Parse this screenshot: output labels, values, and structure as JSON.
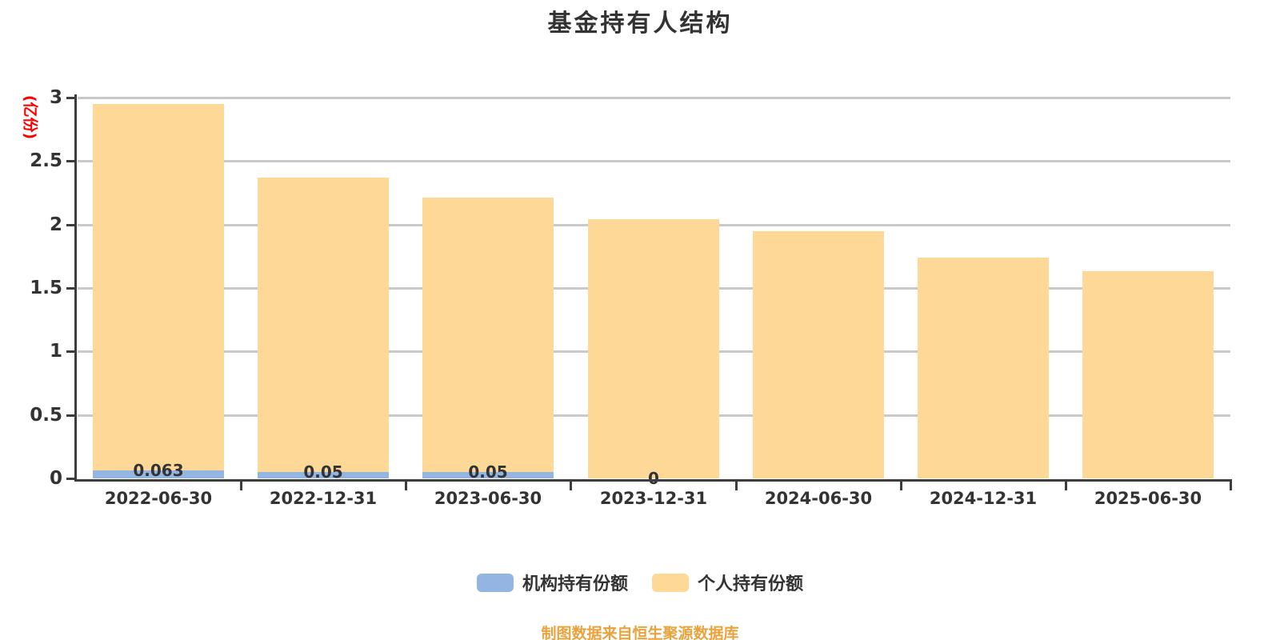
{
  "page": {
    "background": "#ffffff"
  },
  "chart": {
    "title": "基金持有人结构",
    "y_axis": {
      "name": "(亿份)",
      "name_color": "#ff0000",
      "tick_labels": [
        "0",
        "0.5",
        "1",
        "1.5",
        "2",
        "2.5",
        "3"
      ]
    },
    "legend": [
      {
        "label": "机构持有份额",
        "color": "#94b5e2"
      },
      {
        "label": "个人持有份额",
        "color": "#fdd896"
      }
    ],
    "source_note": "制图数据来自恒生聚源数据库"
  },
  "chart_data": {
    "type": "bar",
    "stacked": true,
    "title": "基金持有人结构",
    "categories": [
      "2022-06-30",
      "2022-12-31",
      "2023-06-30",
      "2023-12-31",
      "2024-06-30",
      "2024-12-31",
      "2025-06-30"
    ],
    "series": [
      {
        "name": "机构持有份额",
        "color": "#94b5e2",
        "values": [
          0.063,
          0.05,
          0.05,
          0,
          0,
          0,
          0
        ],
        "data_labels": [
          "0.063",
          "0.05",
          "0.05",
          "0",
          "",
          "",
          ""
        ]
      },
      {
        "name": "个人持有份额",
        "color": "#fdd896",
        "values": [
          2.89,
          2.32,
          2.16,
          2.04,
          1.95,
          1.74,
          1.63
        ]
      }
    ],
    "totals": [
      2.95,
      2.37,
      2.21,
      2.04,
      1.95,
      1.74,
      1.63
    ],
    "xlabel": "",
    "ylabel": "(亿份)",
    "ylim": [
      0,
      3
    ],
    "ytick_step": 0.5,
    "grid": true,
    "legend_position": "bottom",
    "bar_value_labels_series": "机构持有份额",
    "source_note": "制图数据来自恒生聚源数据库",
    "colors": {
      "grid": "#c9c9c9",
      "axis": "#3d3d3d",
      "text": "#333333",
      "y_axis_name": "#ff0000",
      "source_note": "#e8a33d"
    }
  }
}
